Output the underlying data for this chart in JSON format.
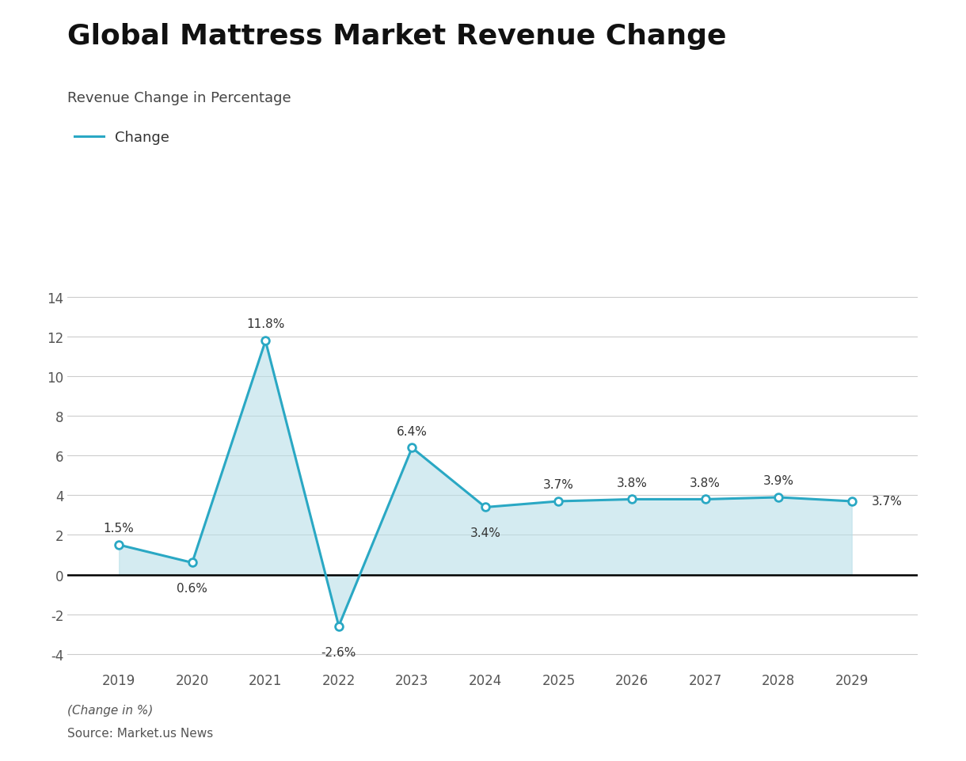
{
  "title": "Global Mattress Market Revenue Change",
  "subtitle": "Revenue Change in Percentage",
  "legend_label": "Change",
  "footer_line1": "(Change in %)",
  "footer_line2": "Source: Market.us News",
  "years": [
    2019,
    2020,
    2021,
    2022,
    2023,
    2024,
    2025,
    2026,
    2027,
    2028,
    2029
  ],
  "values": [
    1.5,
    0.6,
    11.8,
    -2.6,
    6.4,
    3.4,
    3.7,
    3.8,
    3.8,
    3.9,
    3.7
  ],
  "labels": [
    "1.5%",
    "0.6%",
    "11.8%",
    "-2.6%",
    "6.4%",
    "3.4%",
    "3.7%",
    "3.8%",
    "3.8%",
    "3.9%",
    "3.7%"
  ],
  "line_color": "#2aa8c4",
  "fill_color": "#b8dfe8",
  "fill_alpha": 0.6,
  "marker_color": "white",
  "marker_edge_color": "#2aa8c4",
  "background_color": "#ffffff",
  "grid_color": "#cccccc",
  "zero_line_color": "#000000",
  "title_fontsize": 26,
  "subtitle_fontsize": 13,
  "label_fontsize": 11,
  "tick_fontsize": 12,
  "legend_fontsize": 13,
  "footer_fontsize": 11,
  "ylim": [
    -4.8,
    15.2
  ],
  "yticks": [
    -4,
    -2,
    0,
    2,
    4,
    6,
    8,
    10,
    12,
    14
  ]
}
